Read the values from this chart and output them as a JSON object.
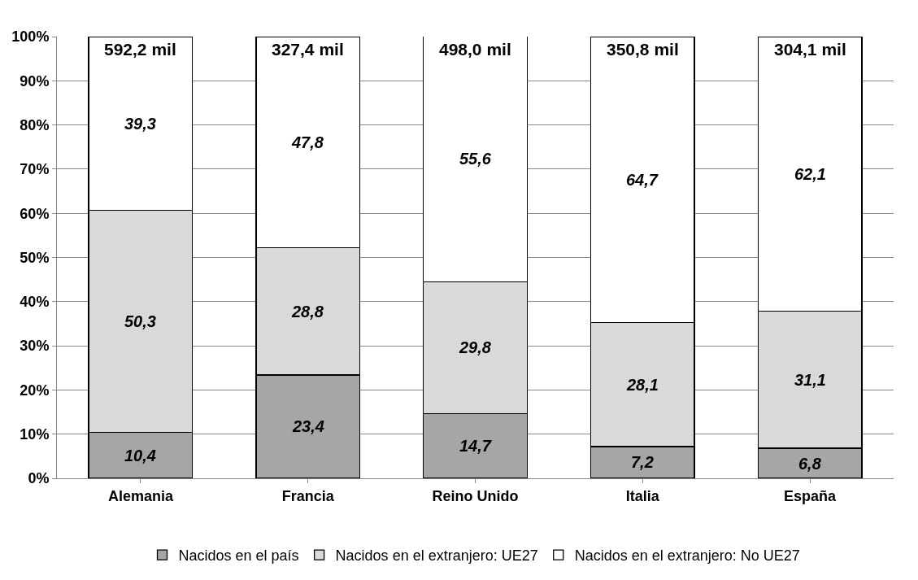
{
  "chart_data": {
    "type": "bar",
    "stacked": true,
    "categories": [
      "Alemania",
      "Francia",
      "Reino Unido",
      "Italia",
      "España"
    ],
    "series": [
      {
        "name": "Nacidos en el país",
        "color": "#a6a6a6",
        "values": [
          10.4,
          23.4,
          14.7,
          7.2,
          6.8
        ],
        "value_labels": [
          "10,4",
          "23,4",
          "14,7",
          "7,2",
          "6,8"
        ]
      },
      {
        "name": "Nacidos en el extranjero: UE27",
        "color": "#d9d9d9",
        "values": [
          50.3,
          28.8,
          29.8,
          28.1,
          31.1
        ],
        "value_labels": [
          "50,3",
          "28,8",
          "29,8",
          "28,1",
          "31,1"
        ]
      },
      {
        "name": "Nacidos en el extranjero: No UE27",
        "color": "#ffffff",
        "values": [
          39.3,
          47.8,
          55.6,
          64.7,
          62.1
        ],
        "value_labels": [
          "39,3",
          "47,8",
          "55,6",
          "64,7",
          "62,1"
        ]
      }
    ],
    "annotations": [
      {
        "text": "592,2 mil",
        "x": "Alemania",
        "y": 100
      },
      {
        "text": "327,4 mil",
        "x": "Francia",
        "y": 100
      },
      {
        "text": "498,0 mil",
        "x": "Reino Unido",
        "y": 100
      },
      {
        "text": "350,8 mil",
        "x": "Italia",
        "y": 100
      },
      {
        "text": "304,1 mil",
        "x": "España",
        "y": 100
      }
    ],
    "ylim": [
      0,
      100
    ],
    "yticks": [
      {
        "value": 0,
        "label": "0%"
      },
      {
        "value": 10,
        "label": "10%"
      },
      {
        "value": 20,
        "label": "20%"
      },
      {
        "value": 30,
        "label": "30%"
      },
      {
        "value": 40,
        "label": "40%"
      },
      {
        "value": 50,
        "label": "50%"
      },
      {
        "value": 60,
        "label": "60%"
      },
      {
        "value": 70,
        "label": "70%"
      },
      {
        "value": 80,
        "label": "80%"
      },
      {
        "value": 90,
        "label": "90%"
      },
      {
        "value": 100,
        "label": "100%"
      }
    ],
    "grid": "y",
    "legend": "bottom"
  }
}
